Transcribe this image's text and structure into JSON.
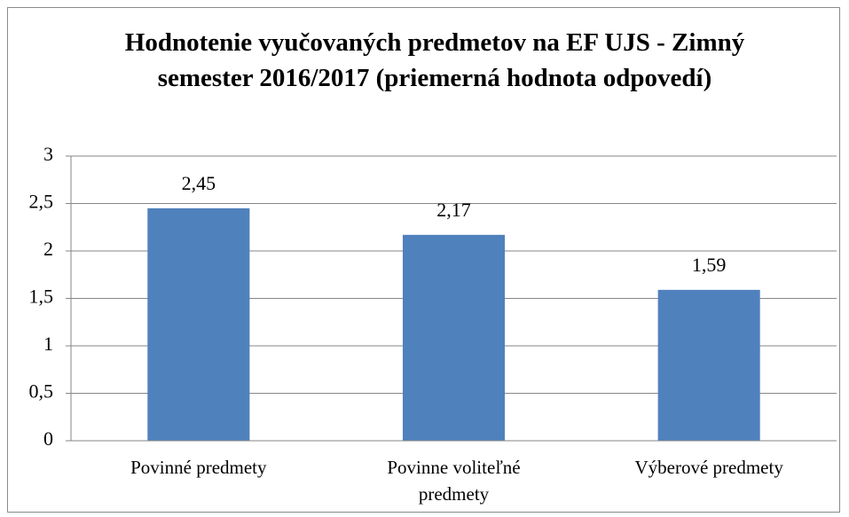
{
  "chart_data": {
    "type": "bar",
    "title": "Hodnotenie vyučovaných predmetov na EF UJS - Zimný semester 2016/2017 (priemerná hodnota odpovedí)",
    "categories": [
      "Povinné predmety",
      "Povinne voliteľné predmety",
      "Výberové predmety"
    ],
    "values": [
      2.45,
      2.17,
      1.59
    ],
    "value_labels": [
      "2,45",
      "2,17",
      "1,59"
    ],
    "color": "#4f81bd",
    "ylim": [
      0,
      3
    ],
    "yticks": [
      0,
      {
        "value": 0.5,
        "label": "0,5"
      },
      1,
      {
        "value": 1.5,
        "label": "1,5"
      },
      2,
      {
        "value": 2.5,
        "label": "2,5"
      },
      3
    ],
    "grid": true
  }
}
